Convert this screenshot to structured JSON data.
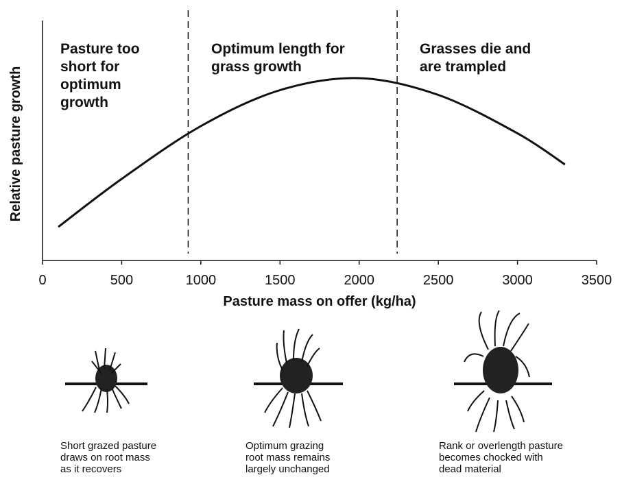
{
  "chart_data": {
    "type": "line",
    "xlabel": "Pasture mass on offer (kg/ha)",
    "ylabel": "Relative pasture growth",
    "xlim": [
      0,
      3500
    ],
    "xticks": [
      0,
      500,
      1000,
      1500,
      2000,
      2500,
      3000,
      3500
    ],
    "ylim": [
      0,
      100
    ],
    "x": [
      100,
      500,
      1000,
      1500,
      2000,
      2500,
      3000,
      3300
    ],
    "series": [
      {
        "color": "#111111",
        "values": [
          14,
          34,
          56,
          71,
          76,
          69,
          53,
          40
        ]
      }
    ],
    "boundaries": [
      920,
      2240
    ],
    "regions": [
      [
        "Pasture too",
        "short for",
        "optimum",
        "growth"
      ],
      [
        "Optimum length for",
        "grass growth"
      ],
      [
        "Grasses die and",
        "are trampled"
      ]
    ],
    "captions": [
      [
        "Short grazed pasture",
        "draws on root mass",
        "as it recovers"
      ],
      [
        "Optimum grazing",
        "root mass remains",
        "largely unchanged"
      ],
      [
        "Rank or overlength pasture",
        "becomes chocked with",
        "dead material"
      ]
    ]
  }
}
